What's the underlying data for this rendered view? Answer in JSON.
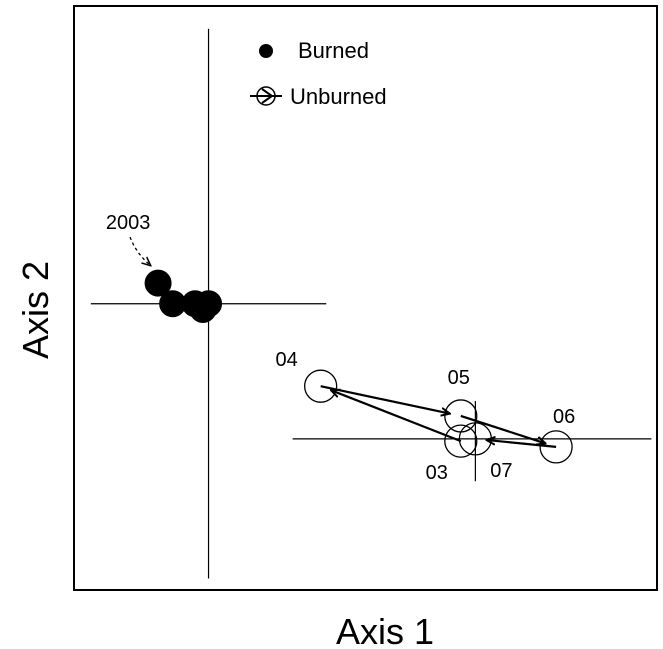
{
  "chart_data": {
    "type": "scatter",
    "title": "",
    "xlabel": "Axis 1",
    "ylabel": "Axis 2",
    "xlim": [
      -1.2,
      4.0
    ],
    "ylim": [
      -2.5,
      2.6
    ],
    "grid": false,
    "legend": {
      "placement": "top-center",
      "entries": [
        {
          "name": "Burned",
          "marker": "filled-circle"
        },
        {
          "name": "Unburned",
          "marker": "open-circle-arrow"
        }
      ]
    },
    "series": [
      {
        "name": "Burned",
        "marker": "filled-circle",
        "color": "#000000",
        "points": [
          {
            "x": -0.45,
            "y": 0.18
          },
          {
            "x": -0.32,
            "y": 0.0
          },
          {
            "x": -0.05,
            "y": -0.05
          },
          {
            "x": -0.12,
            "y": 0.0
          },
          {
            "x": 0.0,
            "y": 0.0
          }
        ],
        "crosshair": {
          "x": 0.0,
          "y": 0.0,
          "x_extent": [
            -1.05,
            1.05
          ],
          "y_extent": [
            -2.4,
            2.4
          ]
        }
      },
      {
        "name": "Unburned",
        "marker": "open-circle",
        "color": "#000000",
        "points": [
          {
            "label": "03",
            "x": 2.25,
            "y": -1.2
          },
          {
            "label": "04",
            "x": 1.0,
            "y": -0.72
          },
          {
            "label": "05",
            "x": 2.25,
            "y": -0.98
          },
          {
            "label": "06",
            "x": 3.1,
            "y": -1.25
          },
          {
            "label": "07",
            "x": 2.38,
            "y": -1.18
          }
        ],
        "path_order": [
          "03",
          "04",
          "05",
          "06",
          "07"
        ],
        "crosshair": {
          "x": 2.38,
          "y": -1.18,
          "x_extent": [
            0.75,
            3.95
          ],
          "y_extent": [
            -1.55,
            -0.85
          ]
        }
      }
    ],
    "annotations": [
      {
        "text": "2003",
        "points_to": {
          "x": -0.45,
          "y": 0.18
        }
      }
    ]
  }
}
